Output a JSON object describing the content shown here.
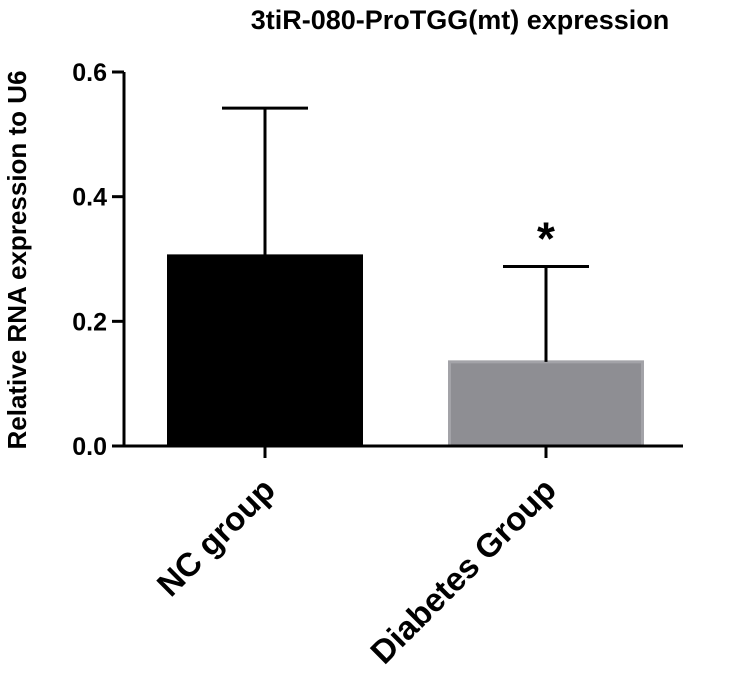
{
  "chart_data": {
    "type": "bar",
    "title": "3tiR-080-ProTGG(mt) expression",
    "xlabel": "",
    "ylabel": "Relative RNA expression to U6",
    "categories": [
      "NC group",
      "Diabetes Group"
    ],
    "values": [
      0.305,
      0.135
    ],
    "error_upper": [
      0.542,
      0.288
    ],
    "significance": [
      "",
      "*"
    ],
    "bar_colors": [
      "#000000",
      "#8e8e93"
    ],
    "ylim": [
      0,
      0.6
    ],
    "yticks": [
      0.0,
      0.2,
      0.4,
      0.6
    ],
    "ytick_labels": [
      "0.0",
      "0.2",
      "0.4",
      "0.6"
    ],
    "grid": false
  }
}
